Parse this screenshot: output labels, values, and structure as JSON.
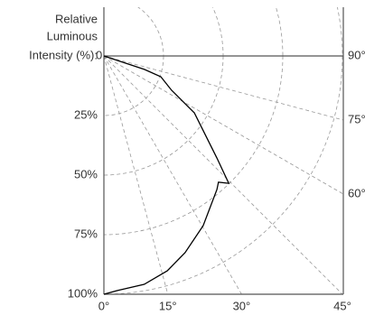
{
  "chart_data": {
    "type": "polar",
    "axis_label": [
      "Relative",
      "Luminous",
      "Intensity (%):"
    ],
    "x": [
      0,
      3.3,
      10,
      16.4,
      22.4,
      30.3,
      40.2,
      42.2,
      44.4,
      47.9,
      57.8,
      63.1,
      69.9,
      71.6,
      71.6,
      90
    ],
    "values": [
      100,
      98.6,
      97.3,
      94,
      89.3,
      82.5,
      73.4,
      71.5,
      74.8,
      63.8,
      44.8,
      31.8,
      25.4,
      17.9,
      6,
      0
    ],
    "color": "#000000",
    "rlim": [
      0,
      100
    ],
    "rticks": [
      0,
      {
        "value": 25,
        "label": "25%"
      },
      {
        "value": 50,
        "label": "50%"
      },
      {
        "value": 75,
        "label": "75%"
      },
      {
        "value": 100,
        "label": "100%"
      }
    ],
    "xlim": [
      0,
      90
    ],
    "xticks": [
      {
        "value": 0,
        "label": "0°"
      },
      {
        "value": 15,
        "label": "15°"
      },
      {
        "value": 30,
        "label": "30°"
      },
      {
        "value": 45,
        "label": "45°"
      },
      {
        "value": 60,
        "label": "60°"
      },
      {
        "value": 75,
        "label": "75°"
      },
      {
        "value": 90,
        "label": "90°"
      }
    ],
    "grid": true
  }
}
